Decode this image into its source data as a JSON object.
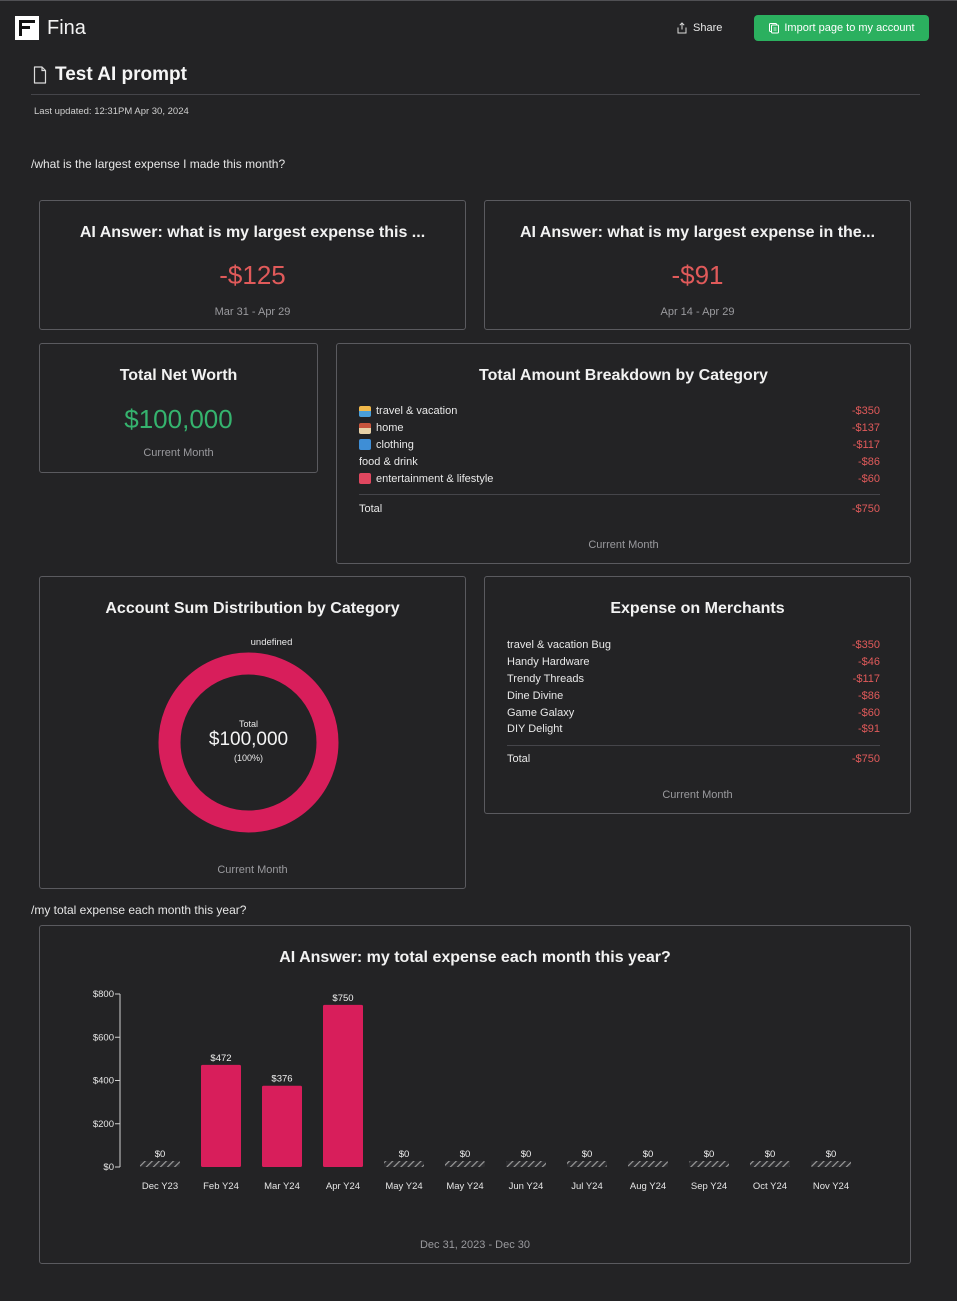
{
  "app": {
    "name": "Fina"
  },
  "header": {
    "share_label": "Share",
    "import_label": "Import page to my account"
  },
  "page": {
    "title": "Test AI prompt",
    "last_updated": "Last updated: 12:31PM Apr 30, 2024",
    "prompt1": "/what is the largest expense I made this month?",
    "prompt2": "/my total expense each month this year?"
  },
  "colors": {
    "accent": "#2bb05f",
    "negative": "#e05a5a",
    "positive": "#35b36e",
    "bar": "#d81e5b"
  },
  "ai1": {
    "title": "AI Answer: what is my largest expense this ...",
    "value": "-$125",
    "range": "Mar 31 - Apr 29"
  },
  "ai2": {
    "title": "AI Answer: what is my largest expense in the...",
    "value": "-$91",
    "range": "Apr 14 - Apr 29"
  },
  "networth": {
    "title": "Total Net Worth",
    "value": "$100,000",
    "period": "Current Month"
  },
  "breakdown": {
    "title": "Total Amount Breakdown by Category",
    "items": [
      {
        "icon": "beach-umbrella-icon",
        "label": "travel & vacation",
        "value": "-$350"
      },
      {
        "icon": "house-icon",
        "label": "home",
        "value": "-$137"
      },
      {
        "icon": "tshirt-icon",
        "label": "clothing",
        "value": "-$117"
      },
      {
        "icon": "",
        "label": "food & drink",
        "value": "-$86"
      },
      {
        "icon": "ticket-icon",
        "label": "entertainment & lifestyle",
        "value": "-$60"
      }
    ],
    "total_label": "Total",
    "total_value": "-$750",
    "period": "Current Month"
  },
  "distribution": {
    "title": "Account Sum Distribution by Category",
    "legend": "undefined",
    "center_label": "Total",
    "center_value": "$100,000",
    "center_pct": "(100%)",
    "period": "Current Month"
  },
  "merchants": {
    "title": "Expense on Merchants",
    "items": [
      {
        "label": "travel & vacation Bug",
        "value": "-$350"
      },
      {
        "label": "Handy Hardware",
        "value": "-$46"
      },
      {
        "label": "Trendy Threads",
        "value": "-$117"
      },
      {
        "label": "Dine Divine",
        "value": "-$86"
      },
      {
        "label": "Game Galaxy",
        "value": "-$60"
      },
      {
        "label": "DIY Delight",
        "value": "-$91"
      }
    ],
    "total_label": "Total",
    "total_value": "-$750",
    "period": "Current Month"
  },
  "monthly": {
    "title": "AI Answer: my total expense each month this year?",
    "range": "Dec 31, 2023 - Dec 30"
  },
  "chart_data": {
    "type": "bar",
    "categories": [
      "Dec Y23",
      "Feb Y24",
      "Mar Y24",
      "Apr Y24",
      "May Y24",
      "May Y24",
      "Jun Y24",
      "Jul Y24",
      "Aug Y24",
      "Sep Y24",
      "Oct Y24",
      "Nov Y24"
    ],
    "values": [
      0,
      472,
      376,
      750,
      0,
      0,
      0,
      0,
      0,
      0,
      0,
      0
    ],
    "value_labels": [
      "$0",
      "$472",
      "$376",
      "$750",
      "$0",
      "$0",
      "$0",
      "$0",
      "$0",
      "$0",
      "$0",
      "$0"
    ],
    "yticks": [
      0,
      200,
      400,
      600,
      800
    ],
    "ytick_labels": [
      "$0",
      "$200",
      "$400",
      "$600",
      "$800"
    ],
    "ylim": [
      0,
      800
    ],
    "grid": false
  }
}
